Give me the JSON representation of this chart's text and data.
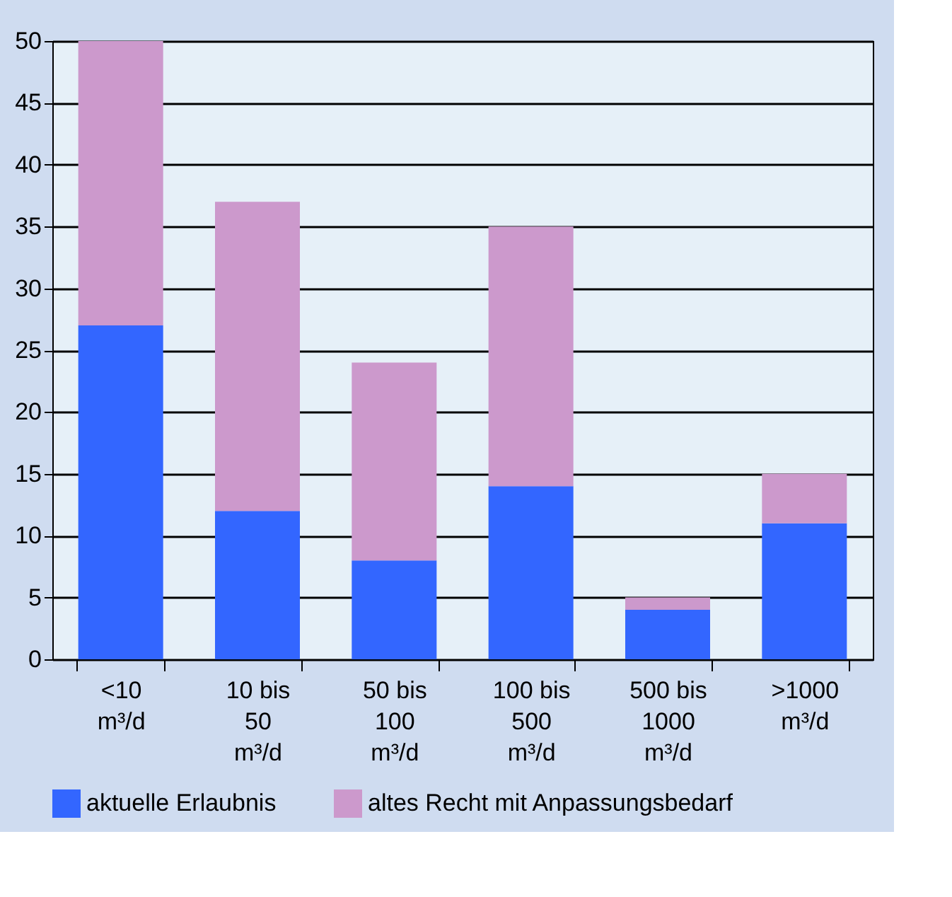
{
  "chart_data": {
    "type": "bar",
    "stacked": true,
    "categories": [
      "<10\nm³/d",
      "10 bis\n50\nm³/d",
      "50 bis\n100\nm³/d",
      "100 bis\n500\nm³/d",
      "500 bis\n1000\nm³/d",
      ">1000\nm³/d"
    ],
    "series": [
      {
        "name": "aktuelle Erlaubnis",
        "color": "#3366ff",
        "values": [
          27,
          12,
          8,
          14,
          4,
          11
        ]
      },
      {
        "name": "altes Recht mit Anpassungsbedarf",
        "color": "#cc99cc",
        "values": [
          23,
          25,
          16,
          21,
          1,
          4
        ]
      }
    ],
    "ylim": [
      0,
      50
    ],
    "yticks": [
      0,
      5,
      10,
      15,
      20,
      25,
      30,
      35,
      40,
      45,
      50
    ],
    "grid": "y",
    "legend": "bottom"
  }
}
